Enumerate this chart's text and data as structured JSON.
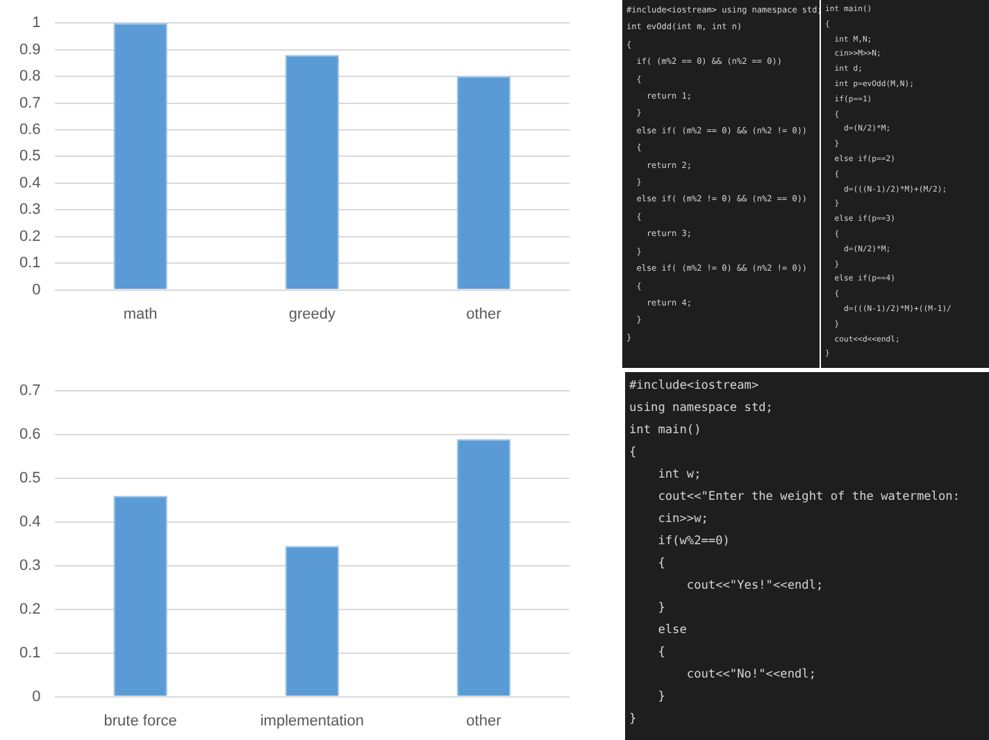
{
  "chart_data": [
    {
      "type": "bar",
      "categories": [
        "math",
        "greedy",
        "other"
      ],
      "values": [
        1,
        0.88,
        0.8
      ],
      "color": "#5b9bd5",
      "ylim": [
        0,
        1
      ],
      "yticks": [
        0,
        0.1,
        0.2,
        0.3,
        0.4,
        0.5,
        0.6,
        0.7,
        0.8,
        0.9,
        1
      ],
      "grid": "y",
      "legend": false
    },
    {
      "type": "bar",
      "categories": [
        "brute force",
        "implementation",
        "other"
      ],
      "values": [
        0.46,
        0.345,
        0.59
      ],
      "color": "#5b9bd5",
      "ylim": [
        0,
        0.7
      ],
      "yticks": [
        0,
        0.1,
        0.2,
        0.3,
        0.4,
        0.5,
        0.6,
        0.7
      ],
      "grid": "y",
      "legend": false
    },
    {
      "type": "other",
      "annotations": [
        "#include<iostream> using namespace std;",
        "int evOdd(int m, int n)",
        "{",
        "  if( (m%2 == 0) && (n%2 == 0))",
        "  {",
        "    return 1;",
        "  }",
        "  else if( (m%2 == 0) && (n%2 != 0))",
        "  {",
        "    return 2;",
        "  }",
        "  else if( (m%2 != 0) && (n%2 == 0))",
        "  {",
        "    return 3;",
        "  }",
        "  else if( (m%2 != 0) && (n%2 != 0))",
        "  {",
        "    return 4;",
        "  }",
        "}"
      ]
    },
    {
      "type": "other",
      "annotations": [
        "int main()",
        "{",
        "  int M,N;",
        "  cin>>M>>N;",
        "  int d;",
        "  int p=evOdd(M,N);",
        "  if(p==1)",
        "  {",
        "    d=(N/2)*M;",
        "  }",
        "  else if(p==2)",
        "  {",
        "    d=(((N-1)/2)*M)+(M/2);",
        "  }",
        "  else if(p==3)",
        "  {",
        "    d=(N/2)*M;",
        "  }",
        "  else if(p==4)",
        "  {",
        "    d=(((N-1)/2)*M)+((M-1)/",
        "  }",
        "  cout<<d<<endl;",
        "}"
      ]
    },
    {
      "type": "other",
      "annotations": [
        "#include<iostream>",
        "using namespace std;",
        "int main()",
        "{",
        "    int w;",
        "    cout<<\"Enter the weight of the watermelon: ",
        "    cin>>w;",
        "    if(w%2==0)",
        "    {",
        "        cout<<\"Yes!\"<<endl;",
        "    }",
        "    else",
        "    {",
        "        cout<<\"No!\"<<endl;",
        "    }",
        "}"
      ]
    }
  ]
}
